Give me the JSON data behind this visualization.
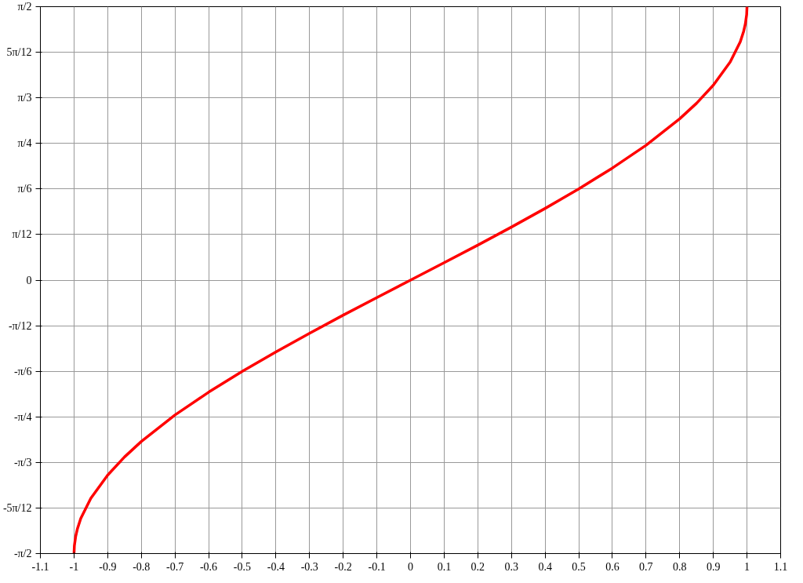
{
  "chart_data": {
    "type": "line",
    "x": [
      -1,
      -0.999,
      -0.995,
      -0.99,
      -0.98,
      -0.95,
      -0.9,
      -0.85,
      -0.8,
      -0.7,
      -0.6,
      -0.5,
      -0.4,
      -0.3,
      -0.2,
      -0.1,
      0,
      0.1,
      0.2,
      0.3,
      0.4,
      0.5,
      0.6,
      0.7,
      0.8,
      0.85,
      0.9,
      0.95,
      0.98,
      0.99,
      0.995,
      0.999,
      1
    ],
    "series": [
      {
        "color": "#ff0000",
        "values": [
          -1.571,
          -1.526,
          -1.471,
          -1.429,
          -1.369,
          -1.253,
          -1.12,
          -1.016,
          -0.927,
          -0.775,
          -0.644,
          -0.524,
          -0.412,
          -0.305,
          -0.201,
          -0.1,
          0,
          0.1,
          0.201,
          0.305,
          0.412,
          0.524,
          0.644,
          0.775,
          0.927,
          1.016,
          1.12,
          1.253,
          1.369,
          1.429,
          1.471,
          1.526,
          1.571
        ]
      }
    ],
    "xlim": [
      -1.1,
      1.1
    ],
    "xticks": [
      -1.1,
      -1,
      -0.9,
      -0.8,
      -0.7,
      -0.6,
      -0.5,
      -0.4,
      -0.3,
      -0.2,
      -0.1,
      0,
      0.1,
      0.2,
      0.3,
      0.4,
      0.5,
      0.6,
      0.7,
      0.8,
      0.9,
      1,
      1.1
    ],
    "ylim": [
      -1.571,
      1.571
    ],
    "yticks": [
      {
        "value": -1.571,
        "label": "-π/2"
      },
      {
        "value": -1.309,
        "label": "-5π/12"
      },
      {
        "value": -1.047,
        "label": "-π/3"
      },
      {
        "value": -0.785,
        "label": "-π/4"
      },
      {
        "value": -0.524,
        "label": "-π/6"
      },
      {
        "value": -0.262,
        "label": "-π/12"
      },
      0,
      {
        "value": 0.262,
        "label": "π/12"
      },
      {
        "value": 0.524,
        "label": "π/6"
      },
      {
        "value": 0.785,
        "label": "π/4"
      },
      {
        "value": 1.047,
        "label": "π/3"
      },
      {
        "value": 1.309,
        "label": "5π/12"
      },
      {
        "value": 1.571,
        "label": "π/2"
      }
    ],
    "grid": true
  }
}
